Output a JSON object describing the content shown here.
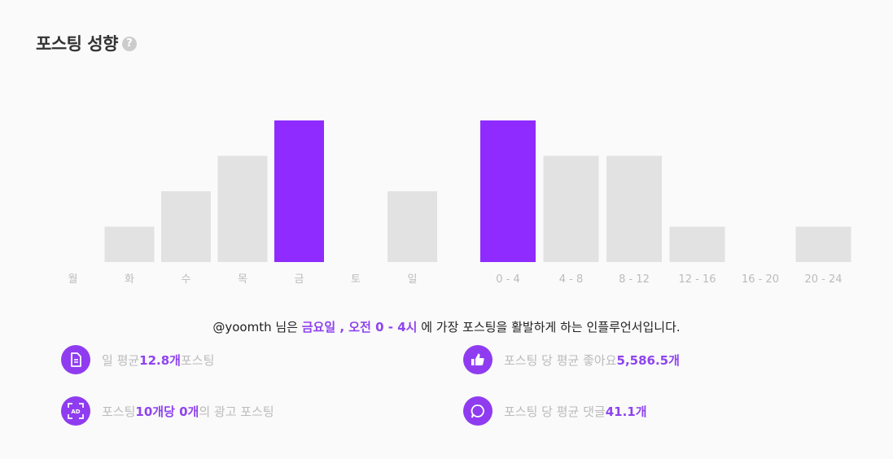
{
  "header": {
    "title": "포스팅 성향",
    "help_icon": "?"
  },
  "colors": {
    "accent": "#8f2bff",
    "bar": "#e2e2e2"
  },
  "chart_data": [
    {
      "type": "bar",
      "categories": [
        "월",
        "화",
        "수",
        "목",
        "금",
        "토",
        "일"
      ],
      "values": [
        0,
        1,
        2,
        3,
        4,
        0,
        2
      ],
      "highlight": "금",
      "ylim": [
        0,
        4
      ]
    },
    {
      "type": "bar",
      "categories": [
        "0 - 4",
        "4 - 8",
        "8 - 12",
        "12 - 16",
        "16 - 20",
        "20 - 24"
      ],
      "values": [
        4,
        3,
        3,
        1,
        0,
        1
      ],
      "highlight": "0 - 4",
      "ylim": [
        0,
        4
      ]
    }
  ],
  "summary": {
    "user": "@yoomth",
    "t1": " 님은 ",
    "day": "금요일 , 오전 0 - 4시",
    "t2": " 에 가장 포스팅을 활발하게 하는 인플루언서입니다."
  },
  "stats": {
    "daily": {
      "icon": "document-icon",
      "pre": "일 평균 ",
      "value": "12.8개",
      "post": " 포스팅"
    },
    "likes": {
      "icon": "thumbs-up-icon",
      "pre": "포스팅 당 평균 좋아요 ",
      "value": "5,586.5개",
      "post": ""
    },
    "ads": {
      "icon": "ad-icon",
      "pre": "포스팅 ",
      "value": "10개당 0개",
      "post": "의 광고 포스팅"
    },
    "comments": {
      "icon": "comment-icon",
      "pre": "포스팅 당 평균 댓글 ",
      "value": "41.1개",
      "post": ""
    }
  }
}
